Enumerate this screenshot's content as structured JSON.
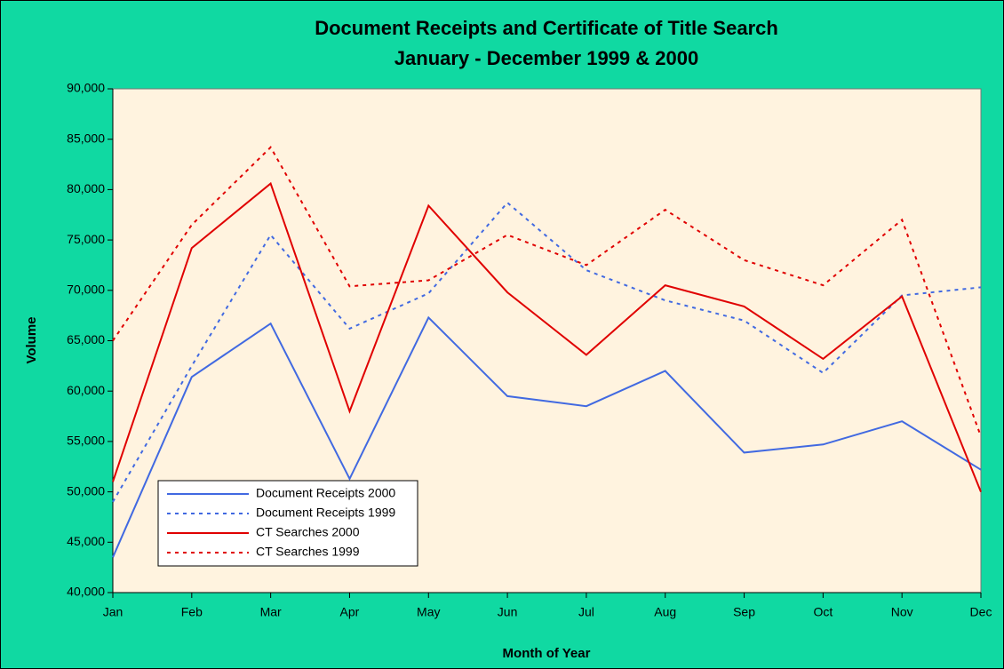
{
  "chart_data": {
    "type": "line",
    "title": "Document Receipts and Certificate of Title Search",
    "subtitle": "January - December 1999 & 2000",
    "x_label": "Month of Year",
    "y_label": "Volume",
    "categories": [
      "Jan",
      "Feb",
      "Mar",
      "Apr",
      "May",
      "Jun",
      "Jul",
      "Aug",
      "Sep",
      "Oct",
      "Nov",
      "Dec"
    ],
    "series": [
      {
        "name": "Document Receipts 2000",
        "color": "#4169e1",
        "dash": "solid",
        "values": [
          43500,
          61400,
          66700,
          51300,
          67300,
          59500,
          58500,
          62000,
          53900,
          54700,
          57000,
          52200
        ]
      },
      {
        "name": "Document Receipts 1999",
        "color": "#4169e1",
        "dash": "dotted",
        "values": [
          49000,
          62500,
          75500,
          66200,
          69700,
          78700,
          72000,
          69000,
          67000,
          61800,
          69500,
          70300
        ]
      },
      {
        "name": "CT Searches 2000",
        "color": "#e00000",
        "dash": "solid",
        "values": [
          51000,
          74200,
          80600,
          58000,
          78400,
          69800,
          63600,
          70500,
          68400,
          63200,
          69400,
          50000
        ]
      },
      {
        "name": "CT Searches 1999",
        "color": "#e00000",
        "dash": "dotted",
        "values": [
          65000,
          76500,
          84200,
          70400,
          71000,
          75500,
          72500,
          78000,
          73000,
          70500,
          77000,
          55500
        ]
      }
    ],
    "ylim": [
      40000,
      90000
    ],
    "yticks": [
      {
        "value": 40000,
        "label": "40,000"
      },
      {
        "value": 45000,
        "label": "45,000"
      },
      {
        "value": 50000,
        "label": "50,000"
      },
      {
        "value": 55000,
        "label": "55,000"
      },
      {
        "value": 60000,
        "label": "60,000"
      },
      {
        "value": 65000,
        "label": "65,000"
      },
      {
        "value": 70000,
        "label": "70,000"
      },
      {
        "value": 75000,
        "label": "75,000"
      },
      {
        "value": 80000,
        "label": "80,000"
      },
      {
        "value": 85000,
        "label": "85,000"
      },
      {
        "value": 90000,
        "label": "90,000"
      }
    ],
    "grid": false,
    "legend": "lower left"
  }
}
